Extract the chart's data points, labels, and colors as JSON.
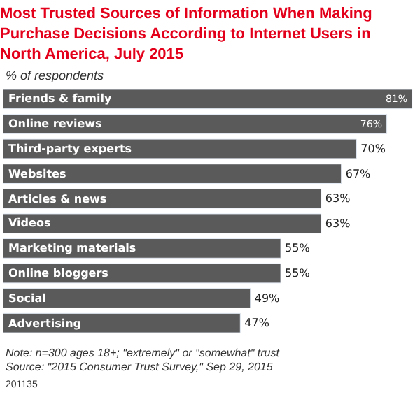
{
  "chart_data": {
    "type": "bar",
    "orientation": "horizontal",
    "title": "Most Trusted Sources of Information When Making Purchase Decisions According to Internet Users in North America, July 2015",
    "subtitle": "% of respondents",
    "categories": [
      "Friends & family",
      "Online reviews",
      "Third-party experts",
      "Websites",
      "Articles & news",
      "Videos",
      "Marketing materials",
      "Online bloggers",
      "Social",
      "Advertising"
    ],
    "values": [
      81,
      76,
      70,
      67,
      63,
      63,
      55,
      55,
      49,
      47
    ],
    "value_labels": [
      "81%",
      "76%",
      "70%",
      "67%",
      "63%",
      "63%",
      "55%",
      "55%",
      "49%",
      "47%"
    ],
    "color": "#5a5a5a",
    "xlim": [
      0,
      82
    ],
    "legend": false,
    "annotations": [
      "Note: n=300 ages 18+; \"extremely\" or \"somewhat\" trust",
      "Source: \"2015 Consumer Trust Survey,\" Sep 29, 2015",
      "201135"
    ]
  }
}
